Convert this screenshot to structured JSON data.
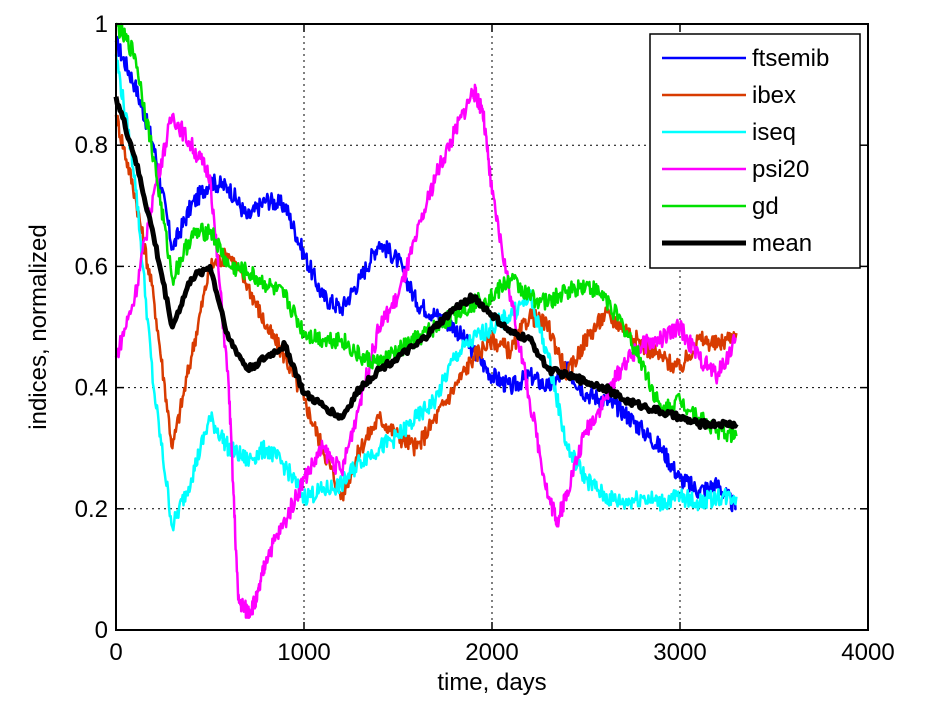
{
  "chart_data": {
    "type": "line",
    "title": "",
    "xlabel": "time, days",
    "ylabel": "indices, normalized",
    "xlim": [
      0,
      4000
    ],
    "ylim": [
      0,
      1
    ],
    "x_ticks": [
      0,
      1000,
      2000,
      3000,
      4000
    ],
    "y_ticks": [
      0,
      0.2,
      0.4,
      0.6,
      0.8,
      1
    ],
    "x_tick_labels": [
      "0",
      "1000",
      "2000",
      "3000",
      "4000"
    ],
    "y_tick_labels": [
      "0",
      "0.2",
      "0.4",
      "0.6",
      "0.8",
      "1"
    ],
    "grid": true,
    "legend_position": "top-right",
    "series": [
      {
        "name": "ftsemib",
        "color": "#0000ff",
        "x": [
          0,
          100,
          200,
          300,
          400,
          500,
          600,
          700,
          800,
          900,
          1000,
          1100,
          1200,
          1300,
          1400,
          1500,
          1600,
          1700,
          1800,
          1900,
          2000,
          2100,
          2200,
          2300,
          2400,
          2500,
          2600,
          2700,
          2800,
          2900,
          3000,
          3100,
          3200,
          3300
        ],
        "y": [
          0.97,
          0.9,
          0.8,
          0.63,
          0.7,
          0.74,
          0.73,
          0.68,
          0.71,
          0.7,
          0.62,
          0.55,
          0.53,
          0.58,
          0.64,
          0.61,
          0.54,
          0.52,
          0.5,
          0.46,
          0.42,
          0.4,
          0.42,
          0.4,
          0.43,
          0.39,
          0.38,
          0.36,
          0.33,
          0.3,
          0.25,
          0.23,
          0.24,
          0.2
        ]
      },
      {
        "name": "ibex",
        "color": "#d83b01",
        "x": [
          0,
          100,
          200,
          300,
          400,
          500,
          600,
          700,
          800,
          900,
          1000,
          1100,
          1200,
          1300,
          1400,
          1500,
          1600,
          1700,
          1800,
          1900,
          2000,
          2100,
          2200,
          2300,
          2400,
          2500,
          2600,
          2700,
          2800,
          2900,
          3000,
          3100,
          3200,
          3300
        ],
        "y": [
          0.85,
          0.72,
          0.55,
          0.3,
          0.45,
          0.6,
          0.62,
          0.57,
          0.5,
          0.45,
          0.38,
          0.3,
          0.22,
          0.3,
          0.35,
          0.32,
          0.3,
          0.35,
          0.4,
          0.45,
          0.48,
          0.46,
          0.52,
          0.5,
          0.42,
          0.48,
          0.52,
          0.5,
          0.47,
          0.45,
          0.43,
          0.48,
          0.47,
          0.49
        ]
      },
      {
        "name": "iseq",
        "color": "#00ffff",
        "x": [
          0,
          100,
          200,
          300,
          400,
          500,
          600,
          700,
          800,
          900,
          1000,
          1100,
          1200,
          1300,
          1400,
          1500,
          1600,
          1700,
          1800,
          1900,
          2000,
          2100,
          2200,
          2300,
          2400,
          2500,
          2600,
          2700,
          2800,
          2900,
          3000,
          3100,
          3200,
          3300
        ],
        "y": [
          0.95,
          0.75,
          0.4,
          0.17,
          0.25,
          0.35,
          0.3,
          0.28,
          0.3,
          0.27,
          0.22,
          0.23,
          0.24,
          0.28,
          0.3,
          0.32,
          0.35,
          0.38,
          0.45,
          0.48,
          0.5,
          0.52,
          0.55,
          0.45,
          0.3,
          0.25,
          0.22,
          0.21,
          0.22,
          0.21,
          0.22,
          0.21,
          0.22,
          0.22
        ]
      },
      {
        "name": "psi20",
        "color": "#ff00ff",
        "x": [
          0,
          100,
          200,
          300,
          400,
          500,
          600,
          650,
          700,
          750,
          800,
          900,
          1000,
          1100,
          1200,
          1300,
          1400,
          1500,
          1600,
          1700,
          1800,
          1900,
          1950,
          2000,
          2100,
          2200,
          2300,
          2350,
          2400,
          2500,
          2600,
          2700,
          2800,
          2900,
          3000,
          3100,
          3200,
          3300
        ],
        "y": [
          0.45,
          0.55,
          0.72,
          0.85,
          0.8,
          0.75,
          0.4,
          0.05,
          0.03,
          0.05,
          0.12,
          0.18,
          0.25,
          0.3,
          0.26,
          0.38,
          0.5,
          0.55,
          0.65,
          0.75,
          0.82,
          0.89,
          0.86,
          0.72,
          0.55,
          0.38,
          0.22,
          0.18,
          0.23,
          0.33,
          0.38,
          0.44,
          0.47,
          0.48,
          0.5,
          0.45,
          0.42,
          0.48
        ]
      },
      {
        "name": "gd",
        "color": "#00e000",
        "x": [
          0,
          100,
          200,
          300,
          400,
          500,
          600,
          700,
          800,
          900,
          1000,
          1100,
          1200,
          1300,
          1400,
          1500,
          1600,
          1700,
          1800,
          1900,
          2000,
          2100,
          2200,
          2300,
          2400,
          2500,
          2600,
          2700,
          2800,
          2900,
          3000,
          3100,
          3200,
          3300
        ],
        "y": [
          1.0,
          0.95,
          0.78,
          0.58,
          0.65,
          0.66,
          0.6,
          0.59,
          0.57,
          0.55,
          0.49,
          0.48,
          0.48,
          0.45,
          0.44,
          0.46,
          0.48,
          0.5,
          0.52,
          0.54,
          0.55,
          0.58,
          0.55,
          0.54,
          0.56,
          0.57,
          0.55,
          0.5,
          0.44,
          0.36,
          0.38,
          0.35,
          0.33,
          0.32
        ]
      },
      {
        "name": "mean",
        "color": "#000000",
        "x": [
          0,
          100,
          200,
          300,
          400,
          500,
          600,
          700,
          800,
          900,
          1000,
          1100,
          1200,
          1300,
          1400,
          1500,
          1600,
          1700,
          1800,
          1900,
          2000,
          2100,
          2200,
          2300,
          2400,
          2500,
          2600,
          2700,
          2800,
          2900,
          3000,
          3100,
          3200,
          3300
        ],
        "y": [
          0.88,
          0.78,
          0.65,
          0.5,
          0.58,
          0.6,
          0.48,
          0.43,
          0.45,
          0.47,
          0.39,
          0.37,
          0.35,
          0.4,
          0.43,
          0.45,
          0.47,
          0.5,
          0.53,
          0.55,
          0.52,
          0.49,
          0.48,
          0.43,
          0.42,
          0.41,
          0.4,
          0.38,
          0.37,
          0.36,
          0.35,
          0.34,
          0.34,
          0.34
        ]
      }
    ]
  }
}
